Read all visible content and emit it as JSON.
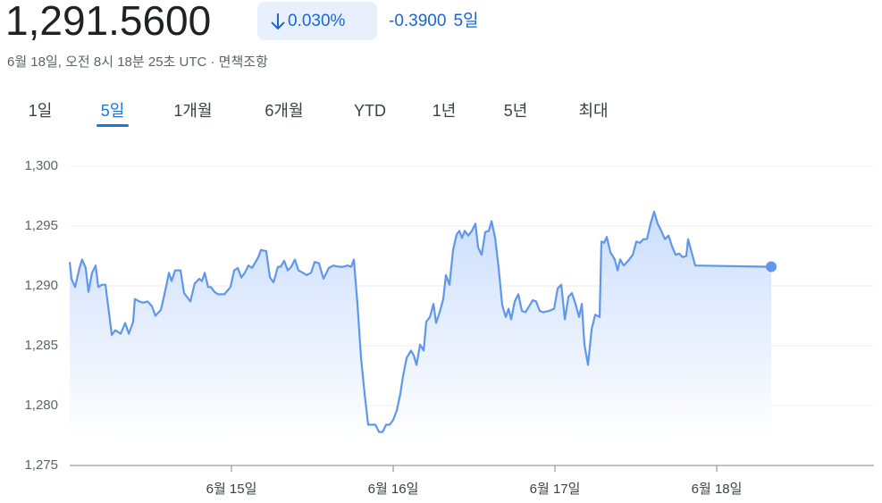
{
  "header": {
    "price": "1,291.5600",
    "change_percent": "0.030%",
    "change": "-0.3900",
    "period": "5일",
    "timestamp": "6월 18일, 오전 8시 18분 25초 UTC · 면책조항"
  },
  "tabs": [
    "1일",
    "5일",
    "1개월",
    "6개월",
    "YTD",
    "1년",
    "5년",
    "최대"
  ],
  "selected_tab": 1,
  "chart_data": {
    "type": "line",
    "color": "#5f97ec",
    "grid": true,
    "xlim": [
      14,
      18.972
    ],
    "xticks": [
      {
        "value": 15,
        "label": "6월 15일"
      },
      {
        "value": 16,
        "label": "6월 16일"
      },
      {
        "value": 17,
        "label": "6월 17일"
      },
      {
        "value": 18,
        "label": "6월 18일"
      }
    ],
    "ylim": [
      1275,
      1300
    ],
    "yticks": [
      {
        "value": 1275,
        "label": "1,275"
      },
      {
        "value": 1280,
        "label": "1,280"
      },
      {
        "value": 1285,
        "label": "1,285"
      },
      {
        "value": 1290,
        "label": "1,290"
      },
      {
        "value": 1295,
        "label": "1,295"
      },
      {
        "value": 1300,
        "label": "1,300"
      }
    ],
    "x": [
      14.0,
      14.011,
      14.033,
      14.061,
      14.077,
      14.099,
      14.116,
      14.138,
      14.16,
      14.177,
      14.199,
      14.221,
      14.26,
      14.282,
      14.315,
      14.343,
      14.365,
      14.392,
      14.403,
      14.431,
      14.453,
      14.481,
      14.508,
      14.53,
      14.564,
      14.597,
      14.613,
      14.63,
      14.652,
      14.685,
      14.707,
      14.746,
      14.773,
      14.801,
      14.818,
      14.834,
      14.856,
      14.873,
      14.895,
      14.917,
      14.956,
      14.994,
      15.017,
      15.039,
      15.061,
      15.083,
      15.105,
      15.127,
      15.166,
      15.182,
      15.215,
      15.238,
      15.26,
      15.287,
      15.304,
      15.326,
      15.348,
      15.37,
      15.392,
      15.414,
      15.442,
      15.464,
      15.492,
      15.514,
      15.541,
      15.569,
      15.602,
      15.63,
      15.663,
      15.691,
      15.718,
      15.74,
      15.757,
      15.779,
      15.801,
      15.823,
      15.845,
      15.89,
      15.912,
      15.934,
      15.956,
      15.978,
      16.0,
      16.022,
      16.044,
      16.061,
      16.083,
      16.11,
      16.127,
      16.144,
      16.166,
      16.188,
      16.204,
      16.227,
      16.249,
      16.265,
      16.287,
      16.309,
      16.326,
      16.348,
      16.37,
      16.392,
      16.409,
      16.425,
      16.442,
      16.464,
      16.486,
      16.508,
      16.525,
      16.547,
      16.569,
      16.591,
      16.608,
      16.63,
      16.652,
      16.674,
      16.696,
      16.713,
      16.729,
      16.751,
      16.773,
      16.796,
      16.818,
      16.84,
      16.862,
      16.884,
      16.906,
      16.928,
      16.961,
      16.995,
      17.017,
      17.039,
      17.061,
      17.083,
      17.105,
      17.127,
      17.149,
      17.166,
      17.182,
      17.204,
      17.227,
      17.249,
      17.276,
      17.287,
      17.304,
      17.32,
      17.343,
      17.37,
      17.387,
      17.403,
      17.425,
      17.453,
      17.481,
      17.503,
      17.525,
      17.547,
      17.569,
      17.591,
      17.613,
      17.635,
      17.657,
      17.68,
      17.702,
      17.724,
      17.746,
      17.768,
      17.79,
      17.812,
      17.823,
      17.845,
      17.867,
      18.337
    ],
    "values": [
      1292.0,
      1290.6,
      1289.9,
      1291.5,
      1292.2,
      1291.5,
      1289.5,
      1291.1,
      1291.7,
      1289.9,
      1290.1,
      1290.1,
      1285.9,
      1286.3,
      1286.0,
      1286.9,
      1286.0,
      1287.0,
      1288.9,
      1288.7,
      1288.6,
      1288.7,
      1288.3,
      1287.5,
      1288.0,
      1290.0,
      1291.1,
      1290.4,
      1291.3,
      1291.3,
      1289.4,
      1288.7,
      1290.2,
      1290.6,
      1290.4,
      1291.1,
      1289.9,
      1289.9,
      1289.5,
      1289.3,
      1289.3,
      1289.9,
      1291.3,
      1291.5,
      1290.7,
      1291.1,
      1291.7,
      1291.5,
      1292.4,
      1293.0,
      1292.9,
      1290.7,
      1290.3,
      1291.6,
      1291.6,
      1292.1,
      1291.3,
      1291.6,
      1292.2,
      1291.3,
      1291.1,
      1290.9,
      1291.1,
      1292.0,
      1291.9,
      1290.6,
      1291.5,
      1291.7,
      1291.6,
      1291.6,
      1291.7,
      1291.6,
      1292.2,
      1288.5,
      1284.0,
      1281.0,
      1278.4,
      1278.4,
      1277.8,
      1277.8,
      1278.4,
      1278.4,
      1278.8,
      1279.6,
      1281.0,
      1282.5,
      1284.0,
      1284.6,
      1284.2,
      1283.4,
      1285.1,
      1284.6,
      1287.0,
      1287.4,
      1288.5,
      1286.9,
      1287.8,
      1288.9,
      1290.9,
      1290.1,
      1293.0,
      1294.3,
      1294.6,
      1294.0,
      1294.6,
      1294.2,
      1294.6,
      1295.2,
      1293.2,
      1292.6,
      1294.5,
      1294.6,
      1295.4,
      1294.0,
      1291.5,
      1288.4,
      1287.4,
      1288.1,
      1287.2,
      1288.7,
      1289.3,
      1287.9,
      1287.8,
      1288.3,
      1288.8,
      1288.7,
      1287.9,
      1287.8,
      1287.9,
      1288.1,
      1289.8,
      1290.1,
      1287.2,
      1289.1,
      1289.4,
      1288.5,
      1287.4,
      1288.5,
      1285.1,
      1283.4,
      1286.4,
      1287.6,
      1287.4,
      1293.7,
      1293.6,
      1294.1,
      1292.8,
      1292.2,
      1291.3,
      1292.2,
      1291.7,
      1292.1,
      1292.6,
      1293.7,
      1293.6,
      1293.9,
      1293.9,
      1295.2,
      1296.2,
      1295.2,
      1294.6,
      1293.9,
      1294.2,
      1293.3,
      1292.6,
      1292.7,
      1292.4,
      1292.5,
      1293.9,
      1292.8,
      1291.7,
      1291.6
    ]
  }
}
